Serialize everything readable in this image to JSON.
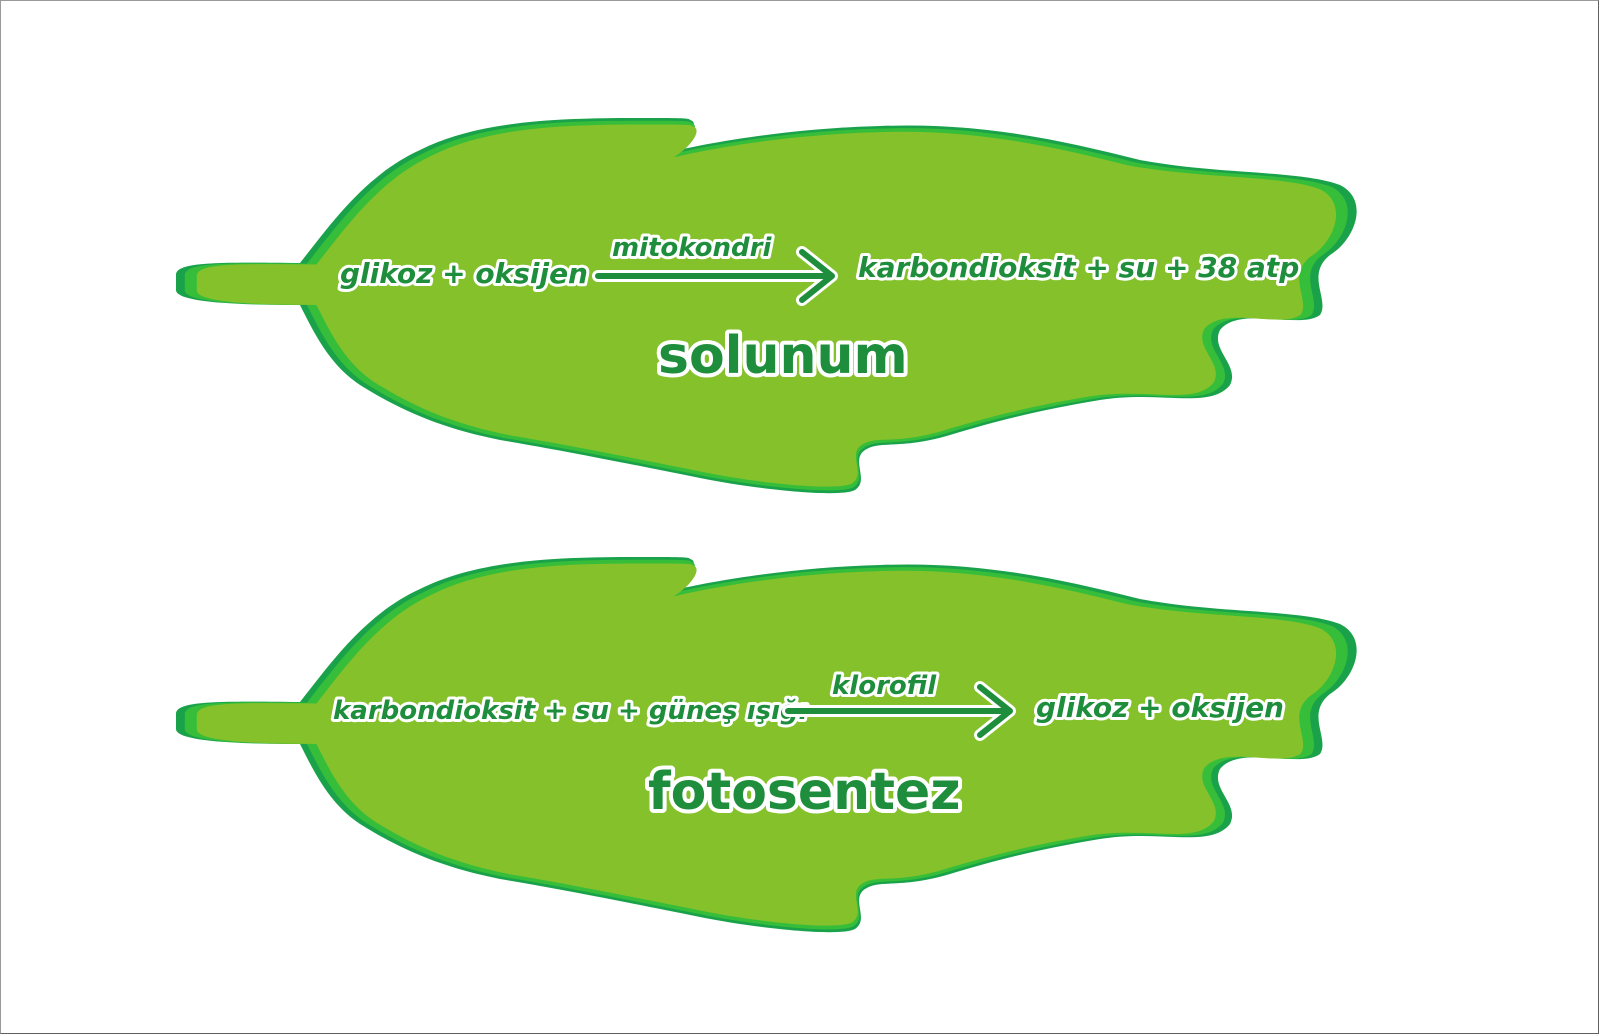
{
  "background_color": "#ffffff",
  "leaf_colors": {
    "outer": "#1aa24a",
    "middle": "#36bd3a",
    "inner": "#84c12a",
    "text": "#1e8e3c"
  },
  "respiration": {
    "reactants": "glikoz + oksijen",
    "catalyst": "mitokondri",
    "products": "karbondioksit + su + 38 atp",
    "title": "solunum"
  },
  "photosynthesis": {
    "reactants": "karbondioksit + su + güneş ışığı",
    "catalyst": "klorofil",
    "products": "glikoz + oksijen",
    "title": "fotosentez"
  }
}
